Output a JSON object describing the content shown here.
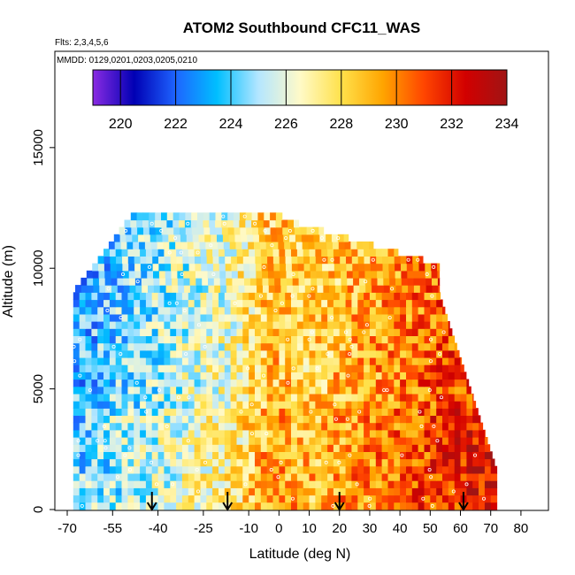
{
  "chart_data": {
    "type": "heatmap",
    "title": "ATOM2 Southbound CFC11_WAS",
    "annotations": [
      "Flts: 2,3,4,5,6",
      "MMDD: 0129,0201,0203,0205,0210"
    ],
    "xlabel": "Latitude (deg N)",
    "ylabel": "Altitude (m)",
    "xlim": [
      -70,
      85
    ],
    "ylim": [
      0,
      18000
    ],
    "x_ticks": [
      -70,
      -55,
      -40,
      -25,
      -10,
      0,
      10,
      20,
      30,
      40,
      50,
      60,
      70,
      80
    ],
    "x_tick_labels": [
      "-70",
      "-55",
      "-40",
      "-25",
      "-10",
      "0",
      "10",
      "20",
      "30",
      "40",
      "50",
      "60",
      "70",
      "80"
    ],
    "y_ticks": [
      0,
      5000,
      10000,
      15000
    ],
    "y_tick_labels": [
      "0",
      "5000",
      "10000",
      "15000"
    ],
    "colorbar": {
      "min": 219,
      "max": 234,
      "ticks": [
        220,
        222,
        224,
        226,
        228,
        230,
        232,
        234
      ],
      "tick_labels": [
        "220",
        "222",
        "224",
        "226",
        "228",
        "230",
        "232",
        "234"
      ],
      "colors": [
        "#8a2be2",
        "#0000b4",
        "#1e64ff",
        "#00bfff",
        "#b4e6ff",
        "#fffac8",
        "#ffe14b",
        "#ffa500",
        "#ff4500",
        "#d20000",
        "#a01414"
      ]
    },
    "flight_markers_lat": [
      -42,
      -17,
      20,
      61
    ],
    "profile_lat_range": [
      -68,
      72
    ],
    "grid": false
  }
}
